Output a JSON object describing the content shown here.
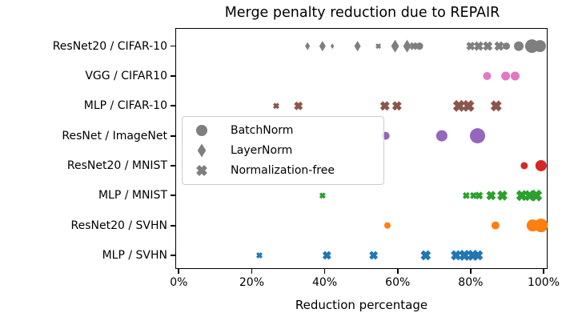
{
  "chart_data": {
    "type": "scatter",
    "title": "Merge penalty reduction due to REPAIR",
    "xlabel": "Reduction percentage",
    "ylabel": "",
    "x_tick_labels": [
      "0%",
      "20%",
      "40%",
      "60%",
      "80%",
      "100%"
    ],
    "x_tick_values": [
      0,
      20,
      40,
      60,
      80,
      100
    ],
    "xlim": [
      -1,
      100.8
    ],
    "grid": false,
    "legend": {
      "position": "center-left",
      "marker_color": "#7f7f7f",
      "entries": [
        {
          "label": "BatchNorm",
          "marker": "circle"
        },
        {
          "label": "LayerNorm",
          "marker": "diamond"
        },
        {
          "label": "Normalization-free",
          "marker": "x"
        }
      ]
    },
    "series": [
      {
        "category": "ResNet20 / CIFAR-10",
        "color": "#7f7f7f",
        "points": [
          {
            "x": 35.3,
            "marker": "diamond",
            "size": 10
          },
          {
            "x": 39.4,
            "marker": "diamond",
            "size": 13
          },
          {
            "x": 42.1,
            "marker": "diamond",
            "size": 7
          },
          {
            "x": 49.0,
            "marker": "diamond",
            "size": 13
          },
          {
            "x": 54.7,
            "marker": "x",
            "size": 7
          },
          {
            "x": 59.3,
            "marker": "diamond",
            "size": 16
          },
          {
            "x": 62.6,
            "marker": "diamond",
            "size": 16
          },
          {
            "x": 64.4,
            "marker": "x",
            "size": 10
          },
          {
            "x": 66.0,
            "marker": "circle",
            "size": 9
          },
          {
            "x": 80.0,
            "marker": "x",
            "size": 11
          },
          {
            "x": 82.2,
            "marker": "x",
            "size": 12
          },
          {
            "x": 84.7,
            "marker": "x",
            "size": 12
          },
          {
            "x": 87.8,
            "marker": "x",
            "size": 12
          },
          {
            "x": 89.8,
            "marker": "circle",
            "size": 9
          },
          {
            "x": 93.2,
            "marker": "circle",
            "size": 12
          },
          {
            "x": 96.8,
            "marker": "circle",
            "size": 17
          },
          {
            "x": 99.0,
            "marker": "circle",
            "size": 15
          }
        ]
      },
      {
        "category": "VGG / CIFAR10",
        "color": "#e377c2",
        "points": [
          {
            "x": 84.5,
            "marker": "circle",
            "size": 10
          },
          {
            "x": 89.6,
            "marker": "circle",
            "size": 11
          },
          {
            "x": 92.2,
            "marker": "circle",
            "size": 11
          }
        ]
      },
      {
        "category": "MLP / CIFAR-10",
        "color": "#8c564b",
        "points": [
          {
            "x": 26.7,
            "marker": "x",
            "size": 8
          },
          {
            "x": 32.8,
            "marker": "x",
            "size": 11
          },
          {
            "x": 56.5,
            "marker": "x",
            "size": 12
          },
          {
            "x": 59.8,
            "marker": "x",
            "size": 12
          },
          {
            "x": 76.8,
            "marker": "x",
            "size": 15
          },
          {
            "x": 79.4,
            "marker": "x",
            "size": 15
          },
          {
            "x": 87.0,
            "marker": "x",
            "size": 14
          }
        ]
      },
      {
        "category": "ResNet / ImageNet",
        "color": "#9467bd",
        "points": [
          {
            "x": 56.7,
            "marker": "circle",
            "size": 10
          },
          {
            "x": 72.1,
            "marker": "circle",
            "size": 14
          },
          {
            "x": 81.9,
            "marker": "circle",
            "size": 19
          }
        ]
      },
      {
        "category": "ResNet20 / MNIST",
        "color": "#d62728",
        "points": [
          {
            "x": 94.7,
            "marker": "circle",
            "size": 9
          },
          {
            "x": 99.3,
            "marker": "circle",
            "size": 14
          }
        ]
      },
      {
        "category": "MLP / MNIST",
        "color": "#2ca02c",
        "points": [
          {
            "x": 39.4,
            "marker": "x",
            "size": 8
          },
          {
            "x": 78.8,
            "marker": "x",
            "size": 9
          },
          {
            "x": 80.8,
            "marker": "x",
            "size": 9
          },
          {
            "x": 82.3,
            "marker": "x",
            "size": 10
          },
          {
            "x": 85.6,
            "marker": "x",
            "size": 12
          },
          {
            "x": 88.7,
            "marker": "x",
            "size": 13
          },
          {
            "x": 94.0,
            "marker": "x",
            "size": 14
          },
          {
            "x": 96.2,
            "marker": "x",
            "size": 14
          },
          {
            "x": 98.0,
            "marker": "x",
            "size": 15
          }
        ]
      },
      {
        "category": "ResNet20 / SVHN",
        "color": "#ff7f0e",
        "points": [
          {
            "x": 57.2,
            "marker": "circle",
            "size": 8
          },
          {
            "x": 86.8,
            "marker": "circle",
            "size": 10
          },
          {
            "x": 97.0,
            "marker": "circle",
            "size": 15
          },
          {
            "x": 99.3,
            "marker": "circle",
            "size": 17
          }
        ]
      },
      {
        "category": "MLP / SVHN",
        "color": "#1f77b4",
        "points": [
          {
            "x": 22.1,
            "marker": "x",
            "size": 8
          },
          {
            "x": 40.6,
            "marker": "x",
            "size": 11
          },
          {
            "x": 53.4,
            "marker": "x",
            "size": 11
          },
          {
            "x": 67.7,
            "marker": "x",
            "size": 13
          },
          {
            "x": 76.0,
            "marker": "x",
            "size": 13
          },
          {
            "x": 78.3,
            "marker": "x",
            "size": 14
          },
          {
            "x": 80.6,
            "marker": "x",
            "size": 14
          },
          {
            "x": 82.0,
            "marker": "x",
            "size": 13
          }
        ]
      }
    ]
  }
}
